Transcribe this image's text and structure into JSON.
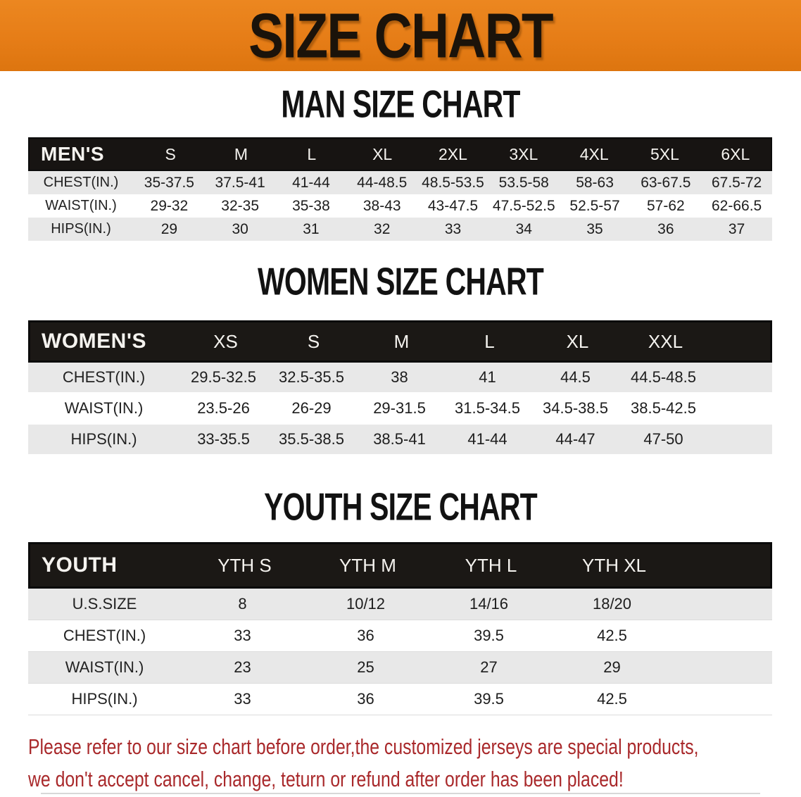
{
  "banner": {
    "title": "SIZE CHART",
    "bg_color": "#e67d17",
    "text_color": "#1b130a"
  },
  "sections": [
    {
      "title": "MAN SIZE CHART",
      "header_label": "MEN'S",
      "columns": [
        "S",
        "M",
        "L",
        "XL",
        "2XL",
        "3XL",
        "4XL",
        "5XL",
        "6XL"
      ],
      "rows": [
        {
          "label": "CHEST(IN.)",
          "values": [
            "35-37.5",
            "37.5-41",
            "41-44",
            "44-48.5",
            "48.5-53.5",
            "53.5-58",
            "58-63",
            "63-67.5",
            "67.5-72"
          ]
        },
        {
          "label": "WAIST(IN.)",
          "values": [
            "29-32",
            "32-35",
            "35-38",
            "38-43",
            "43-47.5",
            "47.5-52.5",
            "52.5-57",
            "57-62",
            "62-66.5"
          ]
        },
        {
          "label": "HIPS(IN.)",
          "values": [
            "29",
            "30",
            "31",
            "32",
            "33",
            "34",
            "35",
            "36",
            "37"
          ]
        }
      ]
    },
    {
      "title": "WOMEN SIZE CHART",
      "header_label": "WOMEN'S",
      "columns": [
        "XS",
        "S",
        "M",
        "L",
        "XL",
        "XXL"
      ],
      "rows": [
        {
          "label": "CHEST(IN.)",
          "values": [
            "29.5-32.5",
            "32.5-35.5",
            "38",
            "41",
            "44.5",
            "44.5-48.5"
          ]
        },
        {
          "label": "WAIST(IN.)",
          "values": [
            "23.5-26",
            "26-29",
            "29-31.5",
            "31.5-34.5",
            "34.5-38.5",
            "38.5-42.5"
          ]
        },
        {
          "label": "HIPS(IN.)",
          "values": [
            "33-35.5",
            "35.5-38.5",
            "38.5-41",
            "41-44",
            "44-47",
            "47-50"
          ]
        }
      ]
    },
    {
      "title": "YOUTH SIZE CHART",
      "header_label": "YOUTH",
      "columns": [
        "YTH S",
        "YTH M",
        "YTH L",
        "YTH XL"
      ],
      "rows": [
        {
          "label": "U.S.SIZE",
          "values": [
            "8",
            "10/12",
            "14/16",
            "18/20"
          ]
        },
        {
          "label": "CHEST(IN.)",
          "values": [
            "33",
            "36",
            "39.5",
            "42.5"
          ]
        },
        {
          "label": "WAIST(IN.)",
          "values": [
            "23",
            "25",
            "27",
            "29"
          ]
        },
        {
          "label": "HIPS(IN.)",
          "values": [
            "33",
            "36",
            "39.5",
            "42.5"
          ]
        }
      ]
    }
  ],
  "disclaimer": {
    "line1": "Please refer to our size chart before order,the customized jerseys are special products,",
    "line2": "we don't accept cancel, change, teturn or refund after order has been placed!",
    "color": "#a9292b"
  },
  "table_colors": {
    "header_bar": "#171412",
    "shaded_row": "#e8e8e8",
    "white_row": "#ffffff"
  }
}
